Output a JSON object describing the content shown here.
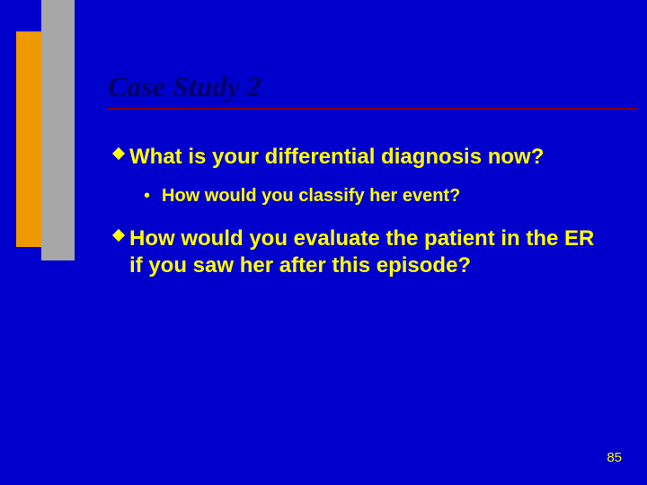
{
  "slide": {
    "title": "Case Study 2",
    "page_number": "85",
    "background_color": "#0000cc",
    "accent_colors": {
      "orange": "#ee9900",
      "gray": "#a7a7a7",
      "rule": "#800000"
    },
    "text_color": "#ffff00",
    "title_color": "#000066",
    "bullets": [
      {
        "text": "What is your differential diagnosis now?"
      },
      {
        "text": "How would you evaluate the patient in the ER if you saw her after this episode?"
      }
    ],
    "sub_bullets": [
      {
        "text": "How would you classify her event?"
      }
    ]
  }
}
